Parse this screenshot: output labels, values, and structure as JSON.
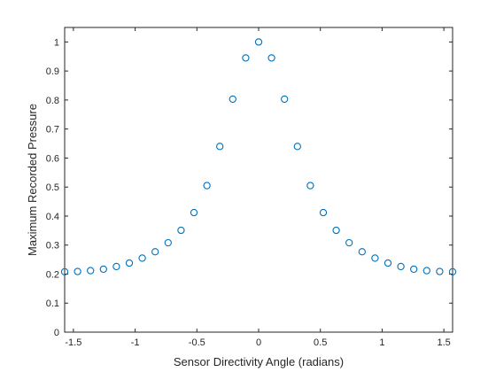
{
  "chart_data": {
    "type": "scatter",
    "title": "",
    "xlabel": "Sensor Directivity Angle (radians)",
    "ylabel": "Maximum Recorded Pressure",
    "xlim": [
      -1.5708,
      1.5708
    ],
    "ylim": [
      0,
      1.05
    ],
    "grid": false,
    "legend": "none",
    "marker": "circle",
    "color": "#0072BD",
    "xticks": [
      -1.5,
      -1,
      -0.5,
      0,
      0.5,
      1,
      1.5
    ],
    "xtick_labels": [
      "-1.5",
      "-1",
      "-0.5",
      "0",
      "0.5",
      "1",
      "1.5"
    ],
    "yticks": [
      0,
      0.1,
      0.2,
      0.3,
      0.4,
      0.5,
      0.6,
      0.7,
      0.8,
      0.9,
      1
    ],
    "ytick_labels": [
      "0",
      "0.1",
      "0.2",
      "0.3",
      "0.4",
      "0.5",
      "0.6",
      "0.7",
      "0.8",
      "0.9",
      "1"
    ],
    "series": [
      {
        "x": [
          -1.5708,
          -1.4661,
          -1.3614,
          -1.2566,
          -1.1519,
          -1.0472,
          -0.9425,
          -0.8378,
          -0.733,
          -0.6283,
          -0.5236,
          -0.4189,
          -0.3142,
          -0.2094,
          -0.1047,
          0,
          0.1047,
          0.2094,
          0.3142,
          0.4189,
          0.5236,
          0.6283,
          0.733,
          0.8378,
          0.9425,
          1.0472,
          1.1519,
          1.2566,
          1.3614,
          1.4661,
          1.5708
        ],
        "y": [
          0.208,
          0.209,
          0.212,
          0.217,
          0.226,
          0.238,
          0.255,
          0.277,
          0.308,
          0.351,
          0.412,
          0.505,
          0.64,
          0.803,
          0.945,
          1.0,
          0.945,
          0.803,
          0.64,
          0.505,
          0.412,
          0.351,
          0.308,
          0.277,
          0.255,
          0.238,
          0.226,
          0.217,
          0.212,
          0.209,
          0.208
        ]
      }
    ]
  }
}
